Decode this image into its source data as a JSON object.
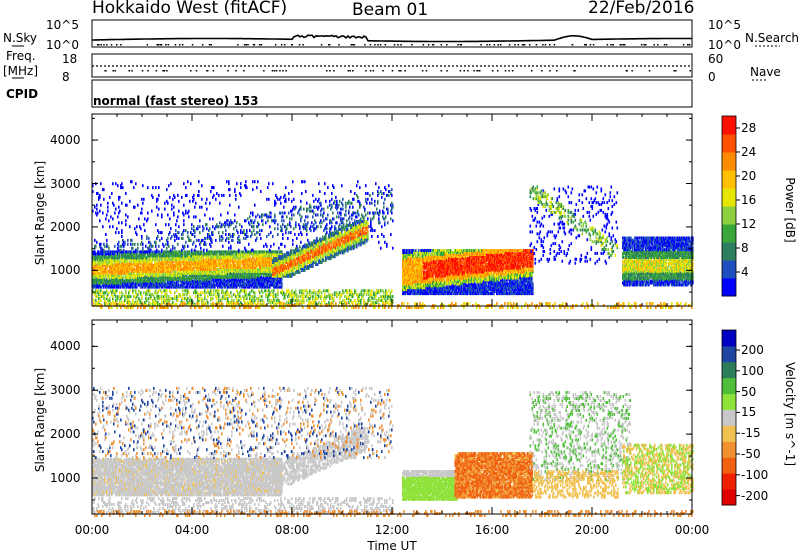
{
  "header": {
    "station": "Hokkaido West (fitACF)",
    "beam": "Beam 01",
    "date": "22/Feb/2016"
  },
  "noise_panel": {
    "left_label": "N.Sky",
    "right_label": "N.Search",
    "left_ticks": [
      "10^5",
      "10^0"
    ],
    "right_ticks": [
      "10^5",
      "10^0"
    ]
  },
  "freq_panel": {
    "left_label_1": "Freq.",
    "left_label_2": "[MHz]",
    "left_ticks": [
      "18",
      "8"
    ],
    "right_label": "Nave",
    "right_ticks": [
      "60",
      "0"
    ]
  },
  "cpid_panel": {
    "label": "CPID",
    "text": "normal (fast stereo) 153"
  },
  "x_axis": {
    "label": "Time UT",
    "ticks": [
      "00:00",
      "04:00",
      "08:00",
      "12:00",
      "16:00",
      "20:00",
      "00:00"
    ]
  },
  "colors": {
    "power_scale": [
      "#0000ff",
      "#1f4fbf",
      "#2e7f5f",
      "#39a63a",
      "#8cd040",
      "#e6e600",
      "#ffc000",
      "#ff8c00",
      "#ff5000",
      "#ff1000"
    ],
    "velocity_scale": [
      "#0000c0",
      "#1e46a0",
      "#2e7d5a",
      "#4fbf3a",
      "#8fe23a",
      "#c8c8c8",
      "#f0c050",
      "#f09030",
      "#f06010",
      "#f02000",
      "#e00000"
    ]
  },
  "chart_data": [
    {
      "type": "heatmap",
      "title": "",
      "ylabel": "Slant Range [km]",
      "y_ticks": [
        "1000",
        "2000",
        "3000",
        "4000"
      ],
      "ylim": [
        180,
        4600
      ],
      "xlim_hours": [
        0,
        24
      ],
      "colorbar_label": "Power [dB]",
      "colorbar_ticks": [
        "4",
        "8",
        "12",
        "16",
        "20",
        "24",
        "28"
      ],
      "colorbar_range": [
        0,
        30
      ],
      "regions": [
        {
          "t": [
            0,
            7.5
          ],
          "range_km": [
            800,
            1400
          ],
          "level_db": 14
        },
        {
          "t": [
            7.5,
            10.5
          ],
          "range_km": [
            1100,
            2000
          ],
          "level_db": 16
        },
        {
          "t": [
            12.5,
            17.5
          ],
          "range_km": [
            650,
            1400
          ],
          "level_db": 24
        },
        {
          "t": [
            21.5,
            24
          ],
          "range_km": [
            800,
            1700
          ],
          "level_db": 12
        }
      ]
    },
    {
      "type": "heatmap",
      "title": "",
      "ylabel": "Slant Range [km]",
      "y_ticks": [
        "1000",
        "2000",
        "3000",
        "4000"
      ],
      "ylim": [
        180,
        4600
      ],
      "xlim_hours": [
        0,
        24
      ],
      "colorbar_label": "Velocity [m s^-1]",
      "colorbar_ticks": [
        "200",
        "100",
        "50",
        "15",
        "-15",
        "-50",
        "-100",
        "-200"
      ],
      "colorbar_range": [
        -250,
        250
      ],
      "regions": [
        {
          "t": [
            0,
            11
          ],
          "range_km": [
            600,
            1900
          ],
          "velocity": 0
        },
        {
          "t": [
            12.5,
            14.5
          ],
          "range_km": [
            600,
            1100
          ],
          "velocity": 40
        },
        {
          "t": [
            14.5,
            17.5
          ],
          "range_km": [
            700,
            1500
          ],
          "velocity": -80
        }
      ]
    }
  ]
}
